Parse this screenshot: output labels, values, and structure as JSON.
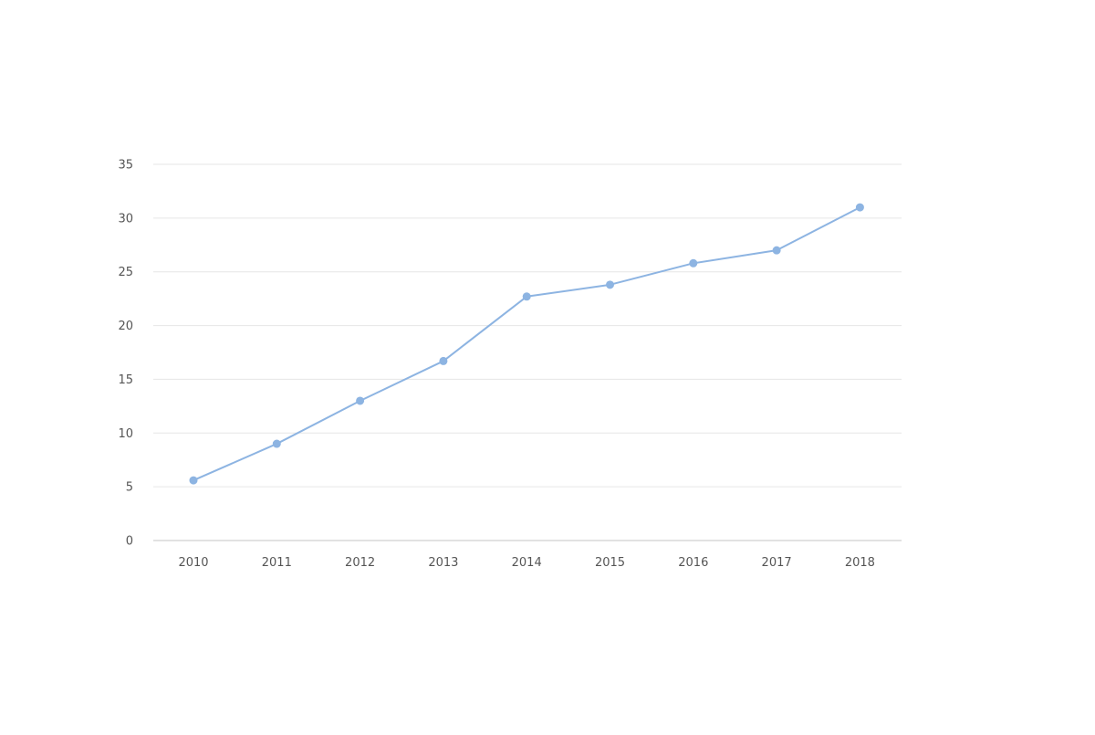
{
  "chart_data": {
    "type": "line",
    "title": "",
    "xlabel": "",
    "ylabel": "",
    "categories": [
      "2010",
      "2011",
      "2012",
      "2013",
      "2014",
      "2015",
      "2016",
      "2017",
      "2018"
    ],
    "series": [
      {
        "values": [
          5.6,
          9.0,
          13.0,
          16.7,
          22.7,
          23.8,
          25.8,
          27.0,
          31.0
        ]
      }
    ],
    "ylim": [
      0,
      35
    ],
    "yticks": [
      "0",
      "5",
      "10",
      "15",
      "20",
      "25",
      "30",
      "35"
    ],
    "grid": true,
    "legend": "none",
    "colors": {
      "line": "#8db4e2",
      "marker": "#8db4e2",
      "grid": "#e6e6e6",
      "axis": "#d9d9d9",
      "label": "#555555"
    }
  }
}
